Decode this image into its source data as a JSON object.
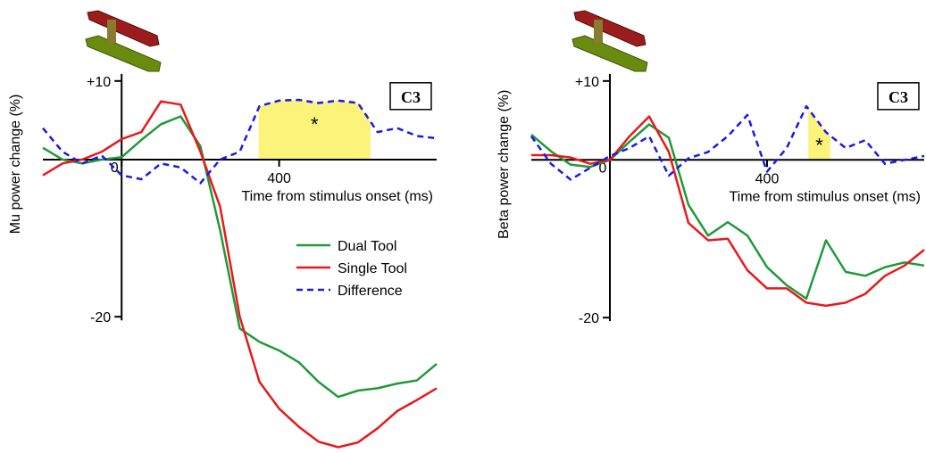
{
  "chart_data": [
    {
      "type": "line",
      "x_label": "Time from stimulus onset (ms)",
      "y_label": "Mu power change (%)",
      "label_box": "C3",
      "significance_mark": "*",
      "highlight": [
        348,
        632
      ],
      "highlight_color": "#fbf37a",
      "x": [
        -200,
        -150,
        -100,
        -50,
        0,
        50,
        100,
        150,
        200,
        250,
        300,
        350,
        400,
        450,
        500,
        550,
        600,
        650,
        700,
        750,
        800
      ],
      "xlim": [
        -200,
        800
      ],
      "ylim": [
        -37,
        11
      ],
      "xticks": [
        0,
        400
      ],
      "yticks": [
        {
          "value": 10,
          "label": "+10"
        },
        -20
      ],
      "legend": "right",
      "series": [
        {
          "name": "Dual Tool",
          "color": "#1f9a3a",
          "dashed": false,
          "values": [
            1.5,
            0,
            -0.5,
            0,
            0.3,
            2.5,
            4.5,
            5.5,
            1.7,
            -9,
            -21.5,
            -23.2,
            -24.3,
            -25.8,
            -28.3,
            -30.2,
            -29.4,
            -29.1,
            -28.5,
            -28.1,
            -26
          ]
        },
        {
          "name": "Single Tool",
          "color": "#e8191c",
          "dashed": false,
          "values": [
            -2,
            -0.5,
            0,
            1,
            2.6,
            3.5,
            7.4,
            7,
            1,
            -6,
            -20,
            -28.3,
            -31.7,
            -34,
            -35.9,
            -36.6,
            -36,
            -34.2,
            -32,
            -30.6,
            -29.1
          ]
        },
        {
          "name": "Difference",
          "color": "#1a1aee",
          "dashed": true,
          "values": [
            4,
            1,
            -0.5,
            0.5,
            -2,
            -2.5,
            -0.5,
            -1,
            -3,
            0,
            1,
            6.8,
            7.5,
            7.6,
            7.2,
            7.5,
            7.2,
            3.5,
            4,
            3,
            2.7
          ]
        }
      ]
    },
    {
      "type": "line",
      "x_label": "Time from stimulus onset (ms)",
      "y_label": "Beta power change (%)",
      "label_box": "C3",
      "significance_mark": "*",
      "highlight": [
        505,
        561
      ],
      "highlight_color": "#fbf37a",
      "x": [
        -200,
        -150,
        -100,
        -50,
        0,
        50,
        100,
        150,
        200,
        250,
        300,
        350,
        400,
        450,
        500,
        550,
        600,
        650,
        700,
        750,
        800
      ],
      "xlim": [
        -200,
        800
      ],
      "ylim": [
        -21,
        11
      ],
      "xticks": [
        0,
        400
      ],
      "yticks": [
        {
          "value": 10,
          "label": "+10"
        },
        -20
      ],
      "series": [
        {
          "color": "#1f9a3a",
          "dashed": false,
          "values": [
            3.2,
            1.1,
            -0.6,
            -0.9,
            0,
            2.3,
            4.5,
            2.8,
            -5.7,
            -9.6,
            -7.9,
            -9.6,
            -13.6,
            -15.9,
            -17.6,
            -10.2,
            -14.2,
            -14.7,
            -13.6,
            -13,
            -13.4
          ]
        },
        {
          "color": "#e8191c",
          "dashed": false,
          "values": [
            0.6,
            0.6,
            0.3,
            -0.5,
            0,
            3,
            5.5,
            1,
            -8,
            -10.2,
            -10,
            -14,
            -16.3,
            -16.3,
            -18.1,
            -18.5,
            -18.1,
            -17,
            -14.7,
            -13.4,
            -11.4
          ]
        },
        {
          "color": "#1a1aee",
          "dashed": true,
          "values": [
            3,
            -0.5,
            -2.5,
            -1,
            0.5,
            1.5,
            3,
            -2,
            0.2,
            1,
            3,
            5.7,
            -1.5,
            1.5,
            6.8,
            3.5,
            1.5,
            2.5,
            -0.5,
            0,
            0.5
          ]
        }
      ]
    }
  ]
}
